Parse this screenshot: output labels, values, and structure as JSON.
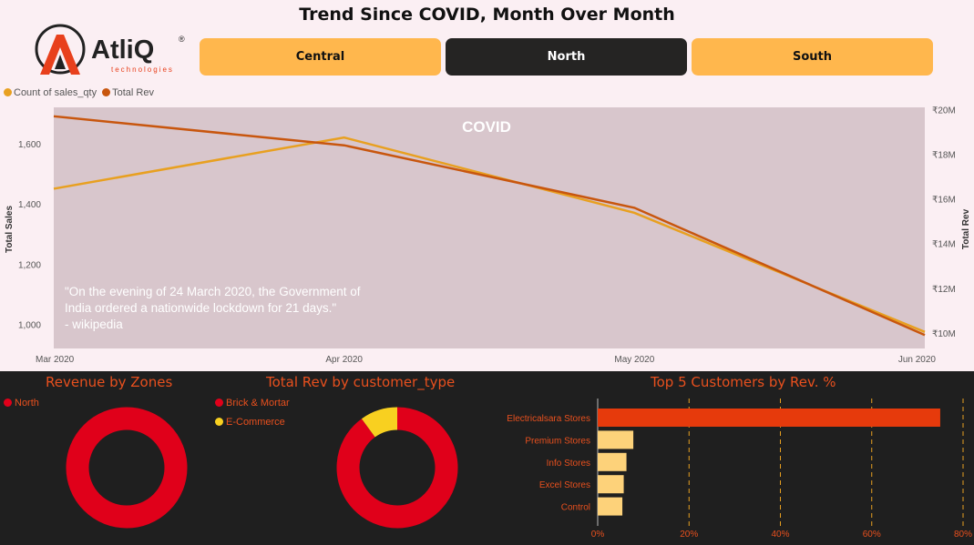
{
  "header": {
    "title": "Trend Since COVID, Month Over Month"
  },
  "logo": {
    "name": "AtliQ",
    "sub": "technologies"
  },
  "zones": [
    {
      "label": "Central",
      "active": false
    },
    {
      "label": "North",
      "active": true
    },
    {
      "label": "South",
      "active": false
    }
  ],
  "colors": {
    "sales_qty": "#e8a020",
    "total_rev": "#c8560e",
    "plot_bg": "#d8c6cc",
    "button": "#ffb74d",
    "button_active": "#252423",
    "north": "#e0001a",
    "ecommerce": "#f8d020",
    "top_customer": "#e63a0c",
    "other_customers": "#fdd27a"
  },
  "chart_data": [
    {
      "type": "line",
      "legend": [
        "Count of sales_qty",
        "Total Rev"
      ],
      "x": [
        "Mar 2020",
        "Apr 2020",
        "May 2020",
        "Jun 2020"
      ],
      "series": [
        {
          "name": "Count of sales_qty",
          "axis": "left",
          "values": [
            1450,
            1620,
            1370,
            975
          ]
        },
        {
          "name": "Total Rev",
          "axis": "right",
          "values": [
            19.7,
            18.4,
            15.6,
            9.9
          ]
        }
      ],
      "ylabel": "Total Sales",
      "y2label": "Total Rev",
      "ylim": [
        920,
        1720
      ],
      "y2lim": [
        9.3,
        20.1
      ],
      "yticks": [
        "1,000",
        "1,200",
        "1,400",
        "1,600"
      ],
      "y2ticks": [
        "₹10M",
        "₹12M",
        "₹14M",
        "₹16M",
        "₹18M",
        "₹20M"
      ],
      "annotation_title": "COVID",
      "annotation_lines": [
        "\"On the evening of 24 March 2020, the Government of",
        "India ordered a nationwide lockdown for 21 days.\"",
        "- wikipedia"
      ]
    },
    {
      "type": "pie",
      "title": "Revenue by Zones",
      "labels": [
        "North"
      ],
      "values": [
        100
      ]
    },
    {
      "type": "pie",
      "title": "Total Rev by customer_type",
      "labels": [
        "Brick & Mortar",
        "E-Commerce"
      ],
      "values": [
        90,
        10
      ]
    },
    {
      "type": "bar",
      "title": "Top 5 Customers by Rev. %",
      "categories": [
        "Electricalsara Stores",
        "Premium Stores",
        "Info Stores",
        "Excel Stores",
        "Control"
      ],
      "values": [
        75,
        7.8,
        6.3,
        5.7,
        5.4
      ],
      "xlim": [
        0,
        80
      ],
      "xticks": [
        "0%",
        "20%",
        "40%",
        "60%",
        "80%"
      ]
    }
  ]
}
